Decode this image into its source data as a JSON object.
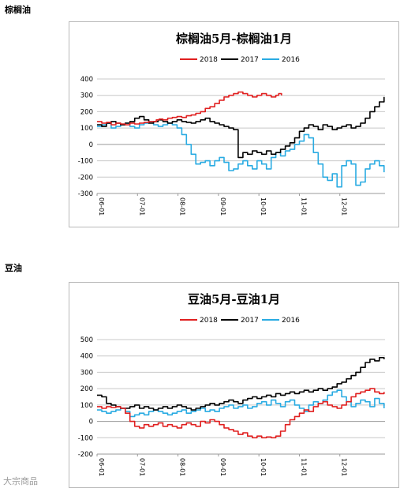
{
  "sections": [
    {
      "label": "棕榈油"
    },
    {
      "label": "豆油"
    }
  ],
  "watermark": "大宗商品",
  "chart_data": [
    {
      "type": "line",
      "title": "棕榈油5月-棕榈油1月",
      "xlabel": "",
      "ylabel": "",
      "ylim": [
        -300,
        400
      ],
      "yticks": [
        400,
        300,
        200,
        100,
        0,
        -100,
        -200,
        -300
      ],
      "xtick_labels": [
        "06-01",
        "07-01",
        "08-01",
        "09-01",
        "10-01",
        "11-01",
        "12-01"
      ],
      "legend_position": "top-center",
      "grid": "horizontal",
      "series": [
        {
          "name": "2018",
          "color": "#e02020",
          "x": [
            0,
            5,
            10,
            15,
            20,
            25,
            30,
            35,
            40,
            45,
            50,
            55,
            60,
            63,
            66,
            70,
            75,
            80,
            85,
            90,
            95,
            100,
            105,
            110,
            115,
            120,
            125,
            130,
            135,
            140,
            145,
            150,
            155,
            160,
            165,
            170,
            175,
            180,
            185,
            190,
            193,
            196
          ],
          "y": [
            140,
            130,
            135,
            120,
            130,
            125,
            120,
            130,
            125,
            130,
            135,
            140,
            140,
            150,
            155,
            150,
            160,
            165,
            170,
            165,
            175,
            180,
            190,
            200,
            220,
            230,
            250,
            270,
            290,
            300,
            310,
            320,
            310,
            300,
            290,
            300,
            310,
            300,
            290,
            300,
            310,
            300
          ]
        },
        {
          "name": "2017",
          "color": "#000000",
          "x": [
            0,
            5,
            10,
            15,
            20,
            25,
            30,
            35,
            40,
            45,
            50,
            55,
            60,
            65,
            70,
            75,
            80,
            85,
            90,
            95,
            100,
            105,
            110,
            115,
            120,
            125,
            130,
            135,
            140,
            145,
            150,
            155,
            160,
            165,
            170,
            175,
            180,
            185,
            190,
            195,
            200,
            205,
            210,
            215,
            220,
            225,
            230,
            235,
            240,
            245,
            250,
            255,
            260,
            265,
            270,
            275,
            280,
            285,
            290,
            295,
            300,
            305
          ],
          "y": [
            120,
            110,
            130,
            140,
            130,
            120,
            130,
            140,
            160,
            170,
            150,
            130,
            140,
            150,
            140,
            130,
            140,
            150,
            140,
            135,
            130,
            140,
            150,
            160,
            140,
            130,
            120,
            110,
            100,
            90,
            -80,
            -50,
            -60,
            -40,
            -50,
            -60,
            -40,
            -60,
            -50,
            -30,
            -10,
            10,
            40,
            80,
            100,
            120,
            110,
            90,
            120,
            110,
            90,
            100,
            110,
            120,
            100,
            110,
            130,
            160,
            200,
            230,
            260,
            290
          ]
        },
        {
          "name": "2016",
          "color": "#29abe2",
          "x": [
            0,
            5,
            10,
            15,
            20,
            25,
            30,
            35,
            40,
            45,
            50,
            55,
            60,
            65,
            70,
            75,
            80,
            85,
            90,
            95,
            100,
            105,
            110,
            115,
            120,
            125,
            130,
            135,
            140,
            145,
            150,
            155,
            160,
            165,
            170,
            175,
            180,
            185,
            190,
            195,
            200,
            205,
            210,
            215,
            220,
            225,
            230,
            235,
            240,
            245,
            250,
            255,
            260,
            265,
            270,
            275,
            280,
            285,
            290,
            295,
            300,
            305
          ],
          "y": [
            110,
            120,
            130,
            100,
            110,
            120,
            130,
            110,
            100,
            120,
            130,
            140,
            120,
            110,
            120,
            130,
            120,
            100,
            60,
            0,
            -60,
            -120,
            -110,
            -100,
            -130,
            -100,
            -80,
            -110,
            -160,
            -150,
            -120,
            -100,
            -130,
            -150,
            -100,
            -120,
            -150,
            -80,
            -50,
            -70,
            -40,
            -30,
            0,
            20,
            60,
            40,
            -50,
            -120,
            -200,
            -220,
            -180,
            -260,
            -130,
            -100,
            -120,
            -250,
            -230,
            -150,
            -120,
            -100,
            -130,
            -170
          ]
        }
      ]
    },
    {
      "type": "line",
      "title": "豆油5月-豆油1月",
      "xlabel": "",
      "ylabel": "",
      "ylim": [
        -200,
        500
      ],
      "yticks": [
        500,
        400,
        300,
        200,
        100,
        0,
        -100,
        -200
      ],
      "xtick_labels": [
        "06-01",
        "07-01",
        "08-01",
        "09-01",
        "10-01",
        "11-01",
        "12-01"
      ],
      "legend_position": "top-center",
      "grid": "horizontal",
      "series": [
        {
          "name": "2018",
          "color": "#e02020",
          "x": [
            0,
            5,
            10,
            15,
            20,
            25,
            30,
            35,
            40,
            45,
            50,
            55,
            60,
            65,
            70,
            75,
            80,
            85,
            90,
            95,
            100,
            105,
            110,
            115,
            120,
            125,
            130,
            135,
            140,
            145,
            150,
            155,
            160,
            165,
            170,
            175,
            180,
            185,
            190,
            195,
            200,
            205,
            210,
            215,
            220,
            225,
            230,
            235,
            240,
            245,
            250,
            255,
            260,
            265,
            270,
            275,
            280,
            285,
            290,
            295,
            300,
            305
          ],
          "y": [
            90,
            80,
            90,
            85,
            90,
            80,
            50,
            0,
            -30,
            -40,
            -20,
            -30,
            -20,
            -10,
            -30,
            -20,
            -30,
            -40,
            -20,
            -10,
            -20,
            -30,
            0,
            -10,
            10,
            0,
            -20,
            -40,
            -50,
            -60,
            -80,
            -70,
            -90,
            -100,
            -90,
            -100,
            -95,
            -100,
            -90,
            -60,
            -20,
            10,
            30,
            50,
            70,
            60,
            90,
            110,
            120,
            100,
            90,
            80,
            100,
            120,
            150,
            170,
            180,
            190,
            200,
            180,
            170,
            180
          ]
        },
        {
          "name": "2017",
          "color": "#000000",
          "x": [
            0,
            5,
            10,
            15,
            20,
            25,
            30,
            35,
            40,
            45,
            50,
            55,
            60,
            65,
            70,
            75,
            80,
            85,
            90,
            95,
            100,
            105,
            110,
            115,
            120,
            125,
            130,
            135,
            140,
            145,
            150,
            155,
            160,
            165,
            170,
            175,
            180,
            185,
            190,
            195,
            200,
            205,
            210,
            215,
            220,
            225,
            230,
            235,
            240,
            245,
            250,
            255,
            260,
            265,
            270,
            275,
            280,
            285,
            290,
            295,
            300,
            305
          ],
          "y": [
            160,
            150,
            110,
            100,
            90,
            80,
            80,
            90,
            100,
            80,
            90,
            80,
            70,
            80,
            90,
            80,
            90,
            100,
            90,
            80,
            70,
            80,
            90,
            100,
            110,
            100,
            110,
            120,
            130,
            120,
            110,
            130,
            140,
            150,
            140,
            150,
            160,
            150,
            170,
            160,
            170,
            180,
            170,
            180,
            190,
            180,
            190,
            200,
            190,
            200,
            210,
            230,
            240,
            260,
            280,
            300,
            330,
            360,
            380,
            370,
            390,
            380
          ]
        },
        {
          "name": "2016",
          "color": "#29abe2",
          "x": [
            0,
            5,
            10,
            15,
            20,
            25,
            30,
            35,
            40,
            45,
            50,
            55,
            60,
            65,
            70,
            75,
            80,
            85,
            90,
            95,
            100,
            105,
            110,
            115,
            120,
            125,
            130,
            135,
            140,
            145,
            150,
            155,
            160,
            165,
            170,
            175,
            180,
            185,
            190,
            195,
            200,
            205,
            210,
            215,
            220,
            225,
            230,
            235,
            240,
            245,
            250,
            255,
            260,
            265,
            270,
            275,
            280,
            285,
            290,
            295,
            300,
            305
          ],
          "y": [
            70,
            60,
            50,
            60,
            70,
            80,
            60,
            30,
            40,
            50,
            40,
            60,
            70,
            60,
            50,
            40,
            50,
            60,
            70,
            50,
            60,
            70,
            80,
            60,
            70,
            60,
            80,
            90,
            100,
            80,
            90,
            100,
            80,
            90,
            110,
            120,
            100,
            130,
            110,
            90,
            120,
            130,
            100,
            80,
            60,
            100,
            120,
            110,
            130,
            160,
            180,
            190,
            150,
            120,
            90,
            110,
            130,
            120,
            90,
            140,
            110,
            80
          ]
        }
      ]
    }
  ]
}
